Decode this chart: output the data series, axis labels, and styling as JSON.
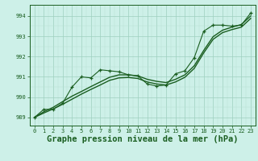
{
  "bg_color": "#cdf0e8",
  "grid_color_major": "#9ecfbf",
  "grid_color_minor": "#b8e0d2",
  "line_color": "#1a5e20",
  "xlabel": "Graphe pression niveau de la mer (hPa)",
  "xlabel_fontsize": 7.5,
  "yticks": [
    989,
    990,
    991,
    992,
    993,
    994
  ],
  "xticks": [
    0,
    1,
    2,
    3,
    4,
    5,
    6,
    7,
    8,
    9,
    10,
    11,
    12,
    13,
    14,
    15,
    16,
    17,
    18,
    19,
    20,
    21,
    22,
    23
  ],
  "xlim": [
    -0.5,
    23.5
  ],
  "ylim": [
    988.6,
    994.55
  ],
  "main_y": [
    989.0,
    989.4,
    989.4,
    989.7,
    990.5,
    991.0,
    990.95,
    991.35,
    991.3,
    991.25,
    991.1,
    991.05,
    990.65,
    990.55,
    990.6,
    991.15,
    991.3,
    991.95,
    993.25,
    993.55,
    993.55,
    993.5,
    993.55,
    994.15
  ],
  "smooth1_y": [
    989.0,
    989.28,
    989.5,
    989.78,
    990.05,
    990.28,
    990.52,
    990.75,
    990.98,
    991.1,
    991.1,
    991.05,
    990.88,
    990.78,
    990.72,
    990.88,
    991.1,
    991.55,
    992.3,
    992.98,
    993.3,
    993.45,
    993.58,
    994.0
  ],
  "smooth2_y": [
    989.0,
    989.22,
    989.42,
    989.65,
    989.9,
    990.15,
    990.38,
    990.6,
    990.83,
    990.95,
    990.97,
    990.92,
    990.75,
    990.65,
    990.6,
    990.75,
    990.98,
    991.42,
    992.18,
    992.85,
    993.18,
    993.33,
    993.45,
    993.88
  ]
}
